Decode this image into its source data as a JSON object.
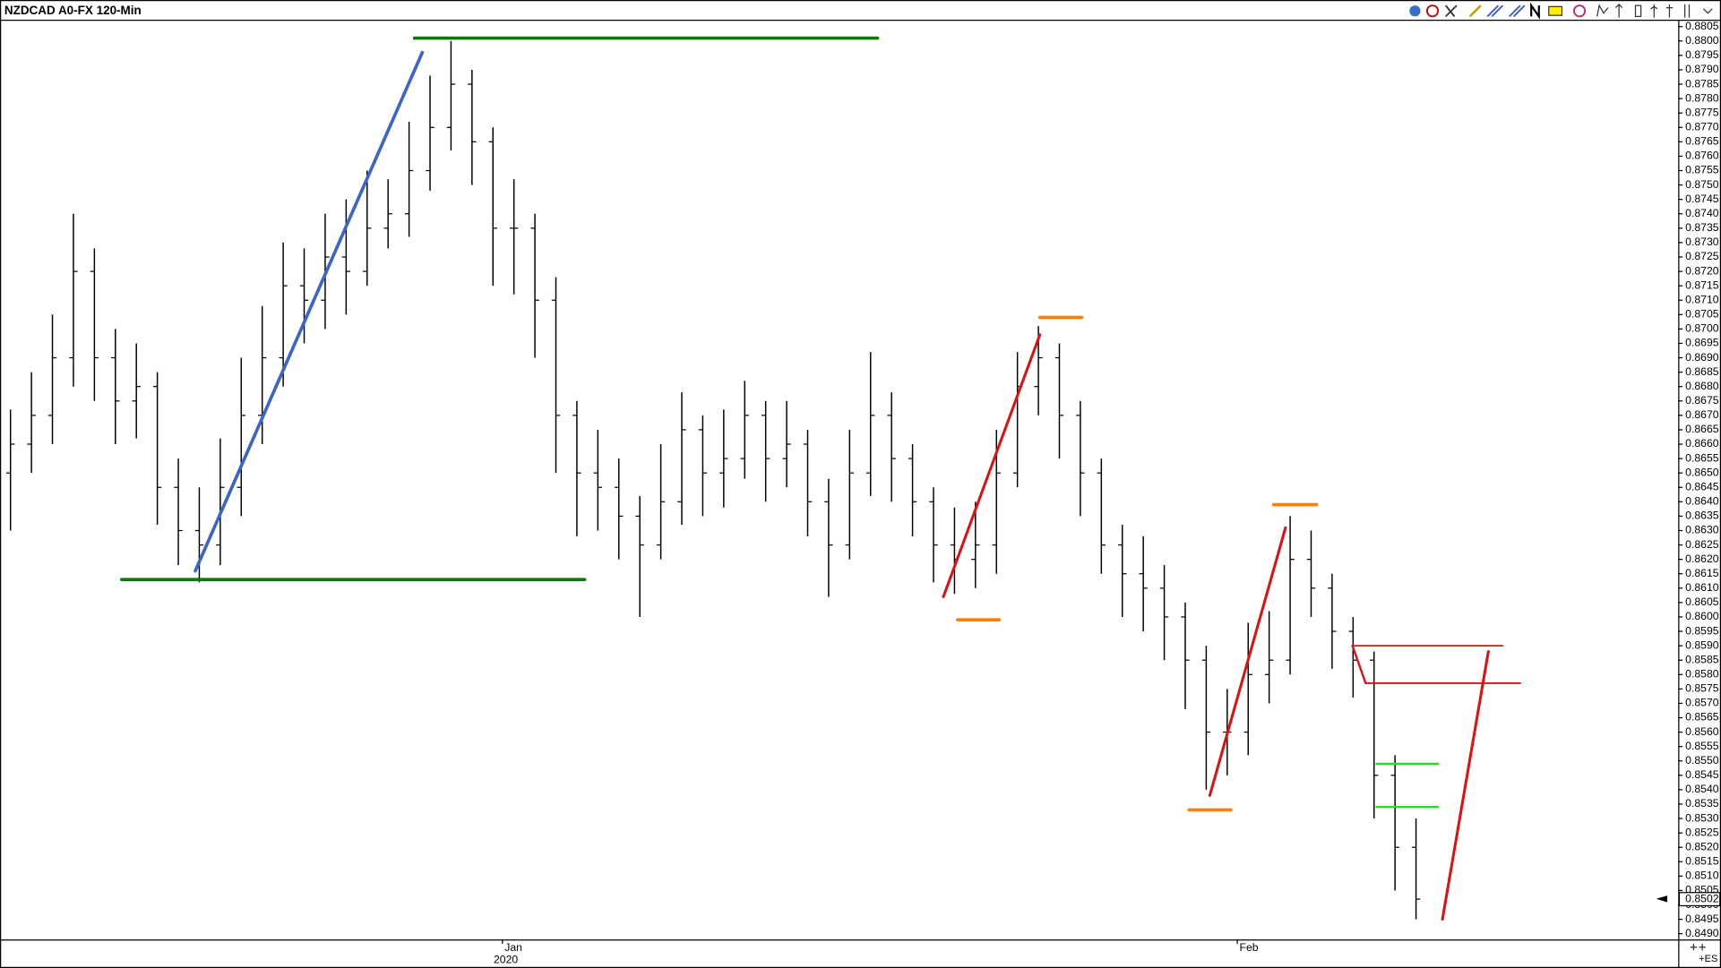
{
  "chart_data": {
    "type": "ohlc",
    "title": "NZDCAD A0-FX 120-Min",
    "bar_color": "#000000",
    "open": [
      0.865,
      0.866,
      0.867,
      0.869,
      0.872,
      0.869,
      0.8675,
      0.868,
      0.8645,
      0.863,
      0.8625,
      0.8645,
      0.867,
      0.869,
      0.8715,
      0.871,
      0.8725,
      0.872,
      0.8735,
      0.874,
      0.8755,
      0.877,
      0.8785,
      0.8765,
      0.8735,
      0.8735,
      0.871,
      0.867,
      0.865,
      0.8645,
      0.8635,
      0.8625,
      0.864,
      0.8665,
      0.865,
      0.8655,
      0.867,
      0.8655,
      0.866,
      0.864,
      0.8625,
      0.865,
      0.867,
      0.8655,
      0.864,
      0.8625,
      0.862,
      0.8625,
      0.865,
      0.868,
      0.869,
      0.867,
      0.865,
      0.8625,
      0.8615,
      0.861,
      0.86,
      0.8585,
      0.856,
      0.856,
      0.858,
      0.8585,
      0.862,
      0.861,
      0.8595,
      0.8585,
      0.8545,
      0.852
    ],
    "high": [
      0.8672,
      0.8685,
      0.8705,
      0.874,
      0.8728,
      0.87,
      0.8695,
      0.8685,
      0.8655,
      0.8645,
      0.8662,
      0.869,
      0.8708,
      0.873,
      0.8728,
      0.874,
      0.8745,
      0.8755,
      0.8752,
      0.8772,
      0.8788,
      0.88,
      0.879,
      0.877,
      0.8752,
      0.874,
      0.8718,
      0.8675,
      0.8665,
      0.8655,
      0.8642,
      0.866,
      0.8678,
      0.867,
      0.8672,
      0.8682,
      0.8675,
      0.8675,
      0.8665,
      0.8648,
      0.8665,
      0.8692,
      0.8678,
      0.866,
      0.8645,
      0.8638,
      0.864,
      0.8665,
      0.8692,
      0.8701,
      0.8695,
      0.8675,
      0.8655,
      0.8632,
      0.8628,
      0.8618,
      0.8605,
      0.859,
      0.8575,
      0.8598,
      0.8602,
      0.8635,
      0.863,
      0.8615,
      0.86,
      0.8588,
      0.8552,
      0.853
    ],
    "low": [
      0.863,
      0.865,
      0.866,
      0.868,
      0.8675,
      0.866,
      0.8662,
      0.8632,
      0.8618,
      0.8612,
      0.8618,
      0.8635,
      0.866,
      0.868,
      0.8695,
      0.87,
      0.8705,
      0.8715,
      0.8728,
      0.8732,
      0.8748,
      0.8762,
      0.875,
      0.8715,
      0.8712,
      0.869,
      0.865,
      0.8628,
      0.863,
      0.862,
      0.86,
      0.862,
      0.8632,
      0.8635,
      0.8638,
      0.8648,
      0.864,
      0.8645,
      0.8628,
      0.8607,
      0.862,
      0.8642,
      0.864,
      0.8628,
      0.8612,
      0.8608,
      0.861,
      0.8615,
      0.8645,
      0.867,
      0.8655,
      0.8635,
      0.8615,
      0.86,
      0.8595,
      0.8585,
      0.8568,
      0.854,
      0.8545,
      0.8552,
      0.857,
      0.858,
      0.86,
      0.8582,
      0.8572,
      0.853,
      0.8505,
      0.8495
    ],
    "close": [
      0.866,
      0.867,
      0.869,
      0.872,
      0.869,
      0.8675,
      0.868,
      0.8645,
      0.863,
      0.8625,
      0.8645,
      0.867,
      0.869,
      0.8715,
      0.871,
      0.8725,
      0.872,
      0.8735,
      0.874,
      0.8755,
      0.877,
      0.8785,
      0.8765,
      0.8735,
      0.8735,
      0.871,
      0.867,
      0.865,
      0.8645,
      0.8635,
      0.8625,
      0.864,
      0.8665,
      0.865,
      0.8655,
      0.867,
      0.8655,
      0.866,
      0.864,
      0.8625,
      0.865,
      0.867,
      0.8655,
      0.864,
      0.8625,
      0.862,
      0.8625,
      0.865,
      0.868,
      0.869,
      0.867,
      0.865,
      0.8625,
      0.8615,
      0.861,
      0.86,
      0.8585,
      0.856,
      0.856,
      0.858,
      0.8585,
      0.862,
      0.861,
      0.8595,
      0.8585,
      0.8545,
      0.852,
      0.8502
    ],
    "xlim": [
      0,
      80
    ],
    "ylim": [
      0.8488,
      0.8807
    ],
    "xticks": [
      {
        "value": 23.95,
        "label": "Jan"
      },
      {
        "value": 58.98,
        "label": "Feb"
      }
    ],
    "xtick_sublabels": [
      "2020",
      null
    ],
    "yticks": [
      0.8805,
      {
        "value": 0.88,
        "label": "0.8800"
      },
      0.8795,
      {
        "value": 0.879,
        "label": "0.8790"
      },
      0.8785,
      {
        "value": 0.878,
        "label": "0.8780"
      },
      0.8775,
      {
        "value": 0.877,
        "label": "0.8770"
      },
      0.8765,
      {
        "value": 0.876,
        "label": "0.8760"
      },
      0.8755,
      {
        "value": 0.875,
        "label": "0.8750"
      },
      0.8745,
      {
        "value": 0.874,
        "label": "0.8740"
      },
      0.8735,
      {
        "value": 0.873,
        "label": "0.8730"
      },
      0.8725,
      {
        "value": 0.872,
        "label": "0.8720"
      },
      0.8715,
      {
        "value": 0.871,
        "label": "0.8710"
      },
      0.8705,
      {
        "value": 0.87,
        "label": "0.8700"
      },
      0.8695,
      {
        "value": 0.869,
        "label": "0.8690"
      },
      0.8685,
      {
        "value": 0.868,
        "label": "0.8680"
      },
      0.8675,
      {
        "value": 0.867,
        "label": "0.8670"
      },
      0.8665,
      {
        "value": 0.866,
        "label": "0.8660"
      },
      0.8655,
      {
        "value": 0.865,
        "label": "0.8650"
      },
      0.8645,
      {
        "value": 0.864,
        "label": "0.8640"
      },
      0.8635,
      {
        "value": 0.863,
        "label": "0.8630"
      },
      0.8625,
      {
        "value": 0.862,
        "label": "0.8620"
      },
      0.8615,
      {
        "value": 0.861,
        "label": "0.8610"
      },
      0.8605,
      {
        "value": 0.86,
        "label": "0.8600"
      },
      0.8595,
      {
        "value": 0.859,
        "label": "0.8590"
      },
      0.8585,
      {
        "value": 0.858,
        "label": "0.8580"
      },
      0.8575,
      {
        "value": 0.857,
        "label": "0.8570"
      },
      0.8565,
      {
        "value": 0.856,
        "label": "0.8560"
      },
      0.8555,
      {
        "value": 0.855,
        "label": "0.8550"
      },
      0.8545,
      {
        "value": 0.854,
        "label": "0.8540"
      },
      0.8535,
      {
        "value": 0.853,
        "label": "0.8530"
      },
      0.8525,
      {
        "value": 0.852,
        "label": "0.8520"
      },
      0.8515,
      {
        "value": 0.851,
        "label": "0.8510"
      },
      0.8505,
      {
        "value": 0.85,
        "label": "0.8500"
      },
      0.8495,
      {
        "value": 0.849,
        "label": "0.8490"
      }
    ],
    "drawings": [
      {
        "color": "#0b7a0b",
        "width": 3,
        "points": [
          [
            19.76,
            0.8801
          ],
          [
            41.83,
            0.8801
          ]
        ]
      },
      {
        "color": "#0b7a0b",
        "width": 3,
        "points": [
          [
            5.8,
            0.8613
          ],
          [
            27.87,
            0.8613
          ]
        ]
      },
      {
        "color": "#3a66c8",
        "width": 3,
        "points": [
          [
            9.31,
            0.8616
          ],
          [
            20.13,
            0.8796
          ]
        ]
      },
      {
        "color": "#e01010",
        "width": 2.5,
        "points": [
          [
            44.97,
            0.8607
          ],
          [
            49.57,
            0.8698
          ]
        ]
      },
      {
        "color": "#ff7f00",
        "width": 3,
        "points": [
          [
            49.57,
            0.8704
          ],
          [
            51.56,
            0.8704
          ]
        ]
      },
      {
        "color": "#ff7f00",
        "width": 3,
        "points": [
          [
            45.65,
            0.8599
          ],
          [
            47.63,
            0.8599
          ]
        ]
      },
      {
        "color": "#e01010",
        "width": 2.5,
        "points": [
          [
            57.67,
            0.8538
          ],
          [
            61.28,
            0.8631
          ]
        ]
      },
      {
        "color": "#ff7f00",
        "width": 3,
        "points": [
          [
            56.68,
            0.8533
          ],
          [
            58.67,
            0.8533
          ]
        ]
      },
      {
        "color": "#ff7f00",
        "width": 3,
        "points": [
          [
            60.71,
            0.8639
          ],
          [
            62.75,
            0.8639
          ]
        ]
      },
      {
        "color": "#e01010",
        "width": 1.5,
        "points": [
          [
            64.47,
            0.859
          ],
          [
            71.63,
            0.859
          ]
        ]
      },
      {
        "color": "#e01010",
        "width": 1.5,
        "points": [
          [
            65.1,
            0.8577
          ],
          [
            72.47,
            0.8577
          ]
        ]
      },
      {
        "color": "#e01010",
        "width": 2,
        "points": [
          [
            64.47,
            0.859
          ],
          [
            65.1,
            0.8577
          ]
        ]
      },
      {
        "color": "#22dd22",
        "width": 2,
        "points": [
          [
            65.62,
            0.8549
          ],
          [
            68.55,
            0.8549
          ]
        ]
      },
      {
        "color": "#22dd22",
        "width": 2,
        "points": [
          [
            65.62,
            0.8534
          ],
          [
            68.55,
            0.8534
          ]
        ]
      },
      {
        "color": "#e01010",
        "width": 2.5,
        "points": [
          [
            68.76,
            0.8495
          ],
          [
            70.95,
            0.8588
          ]
        ]
      }
    ],
    "corner_label": "+ES"
  }
}
